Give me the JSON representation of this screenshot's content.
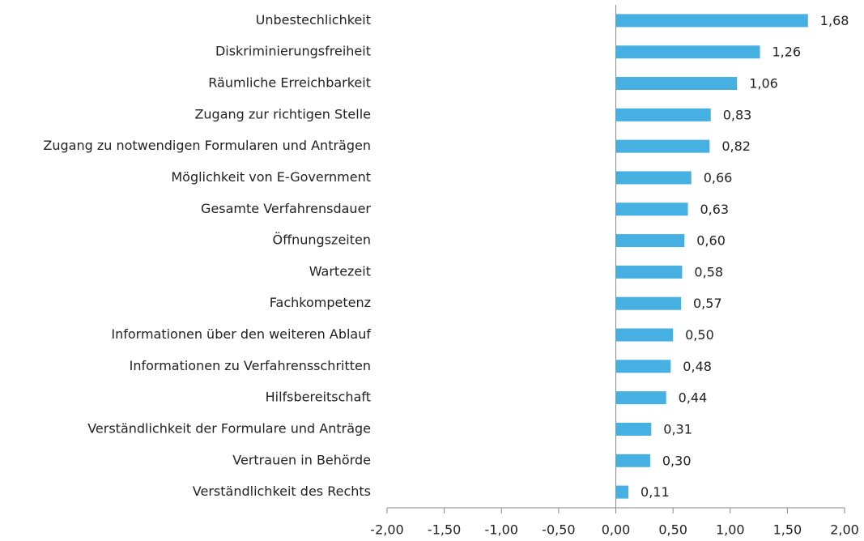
{
  "chart_data": {
    "type": "bar",
    "orientation": "horizontal",
    "categories": [
      "Unbestechlichkeit",
      "Diskriminierungsfreiheit",
      "Räumliche Erreichbarkeit",
      "Zugang zur richtigen Stelle",
      "Zugang zu notwendigen Formularen und Anträgen",
      "Möglichkeit von E-Government",
      "Gesamte Verfahrensdauer",
      "Öffnungszeiten",
      "Wartezeit",
      "Fachkompetenz",
      "Informationen über den weiteren Ablauf",
      "Informationen zu Verfahrensschritten",
      "Hilfsbereitschaft",
      "Verständlichkeit der Formulare und Anträge",
      "Vertrauen in Behörde",
      "Verständlichkeit des Rechts"
    ],
    "values": [
      1.68,
      1.26,
      1.06,
      0.83,
      0.82,
      0.66,
      0.63,
      0.6,
      0.58,
      0.57,
      0.5,
      0.48,
      0.44,
      0.31,
      0.3,
      0.11
    ],
    "value_labels": [
      "1,68",
      "1,26",
      "1,06",
      "0,83",
      "0,82",
      "0,66",
      "0,63",
      "0,60",
      "0,58",
      "0,57",
      "0,50",
      "0,48",
      "0,44",
      "0,31",
      "0,30",
      "0,11"
    ],
    "color": "#45b0e1",
    "xlim": [
      -2,
      2
    ],
    "xticks": [
      {
        "value": -2,
        "label": "-2,00"
      },
      {
        "value": -1.5,
        "label": "-1,50"
      },
      {
        "value": -1,
        "label": "-1,00"
      },
      {
        "value": -0.5,
        "label": "-0,50"
      },
      {
        "value": 0,
        "label": "0,00"
      },
      {
        "value": 0.5,
        "label": "0,50"
      },
      {
        "value": 1,
        "label": "1,00"
      },
      {
        "value": 1.5,
        "label": "1,50"
      },
      {
        "value": 2,
        "label": "2,00"
      }
    ]
  }
}
